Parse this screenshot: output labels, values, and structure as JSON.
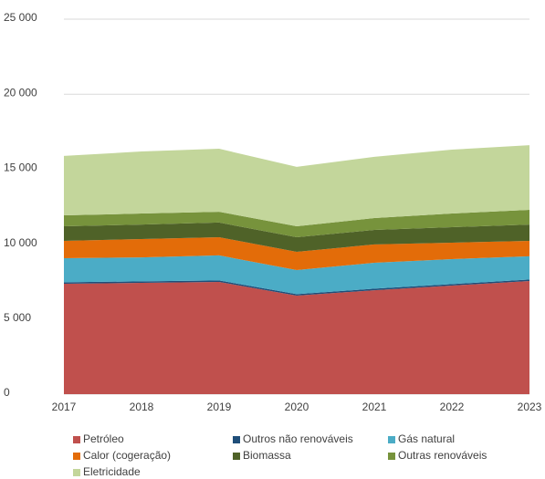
{
  "chart_data": {
    "type": "stacked_area",
    "categories": [
      "2017",
      "2018",
      "2019",
      "2020",
      "2021",
      "2022",
      "2023"
    ],
    "series": [
      {
        "name": "Petróleo",
        "color": "#c0504d",
        "values": [
          7360,
          7420,
          7480,
          6570,
          6930,
          7240,
          7540
        ]
      },
      {
        "name": "Outros não renováveis",
        "color": "#1f4e79",
        "values": [
          100,
          100,
          100,
          100,
          100,
          100,
          100
        ]
      },
      {
        "name": "Gás natural",
        "color": "#4bacc6",
        "values": [
          1600,
          1600,
          1670,
          1600,
          1730,
          1660,
          1550
        ]
      },
      {
        "name": "Calor (cogeração)",
        "color": "#e36c09",
        "values": [
          1160,
          1220,
          1210,
          1220,
          1220,
          1100,
          1030
        ]
      },
      {
        "name": "Biomassa",
        "color": "#4f6228",
        "values": [
          970,
          970,
          980,
          970,
          970,
          1030,
          1090
        ]
      },
      {
        "name": "Outras renováveis",
        "color": "#77933c",
        "values": [
          730,
          730,
          720,
          730,
          790,
          910,
          980
        ]
      },
      {
        "name": "Eletricidade",
        "color": "#c3d69b",
        "values": [
          3960,
          4140,
          4200,
          3960,
          4080,
          4260,
          4310
        ]
      }
    ],
    "ylim": [
      0,
      25000
    ],
    "yticks": [
      0,
      {
        "value": 5000,
        "label": "5 000"
      },
      {
        "value": 10000,
        "label": "10 000"
      },
      {
        "value": 15000,
        "label": "15 000"
      },
      {
        "value": 20000,
        "label": "20 000"
      },
      {
        "value": 25000,
        "label": "25 000"
      }
    ],
    "grid": true
  }
}
